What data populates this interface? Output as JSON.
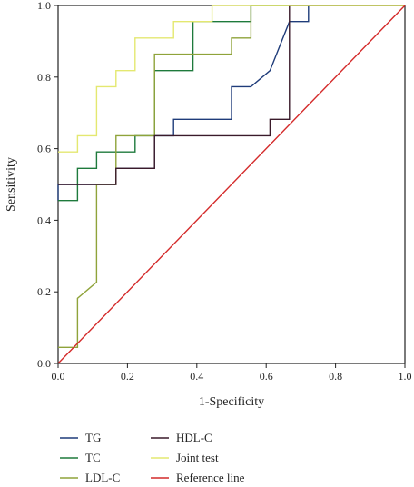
{
  "chart_data": {
    "type": "line",
    "title": "",
    "xlabel": "1-Specificity",
    "ylabel": "Sensitivity",
    "xlim": [
      0,
      1
    ],
    "ylim": [
      0,
      1
    ],
    "xticks": [
      "0.0",
      "0.2",
      "0.4",
      "0.6",
      "0.8",
      "1.0"
    ],
    "yticks": [
      "0.0",
      "0.2",
      "0.4",
      "0.6",
      "0.8",
      "1.0"
    ],
    "grid": false,
    "legend_position": "bottom",
    "series": [
      {
        "name": "TG",
        "color": "#1f3c7a",
        "points": [
          [
            0,
            0.455
          ],
          [
            0,
            0.5
          ],
          [
            0.111,
            0.5
          ],
          [
            0.167,
            0.5
          ],
          [
            0.167,
            0.545
          ],
          [
            0.278,
            0.545
          ],
          [
            0.278,
            0.636
          ],
          [
            0.333,
            0.636
          ],
          [
            0.333,
            0.682
          ],
          [
            0.5,
            0.682
          ],
          [
            0.5,
            0.773
          ],
          [
            0.556,
            0.773
          ],
          [
            0.556,
            0.773
          ],
          [
            0.611,
            0.818
          ],
          [
            0.667,
            0.955
          ],
          [
            0.722,
            0.955
          ],
          [
            0.722,
            1
          ],
          [
            1,
            1
          ]
        ]
      },
      {
        "name": "TC",
        "color": "#1e7a3c",
        "points": [
          [
            0,
            0.455
          ],
          [
            0.056,
            0.455
          ],
          [
            0.056,
            0.545
          ],
          [
            0.111,
            0.545
          ],
          [
            0.111,
            0.591
          ],
          [
            0.222,
            0.591
          ],
          [
            0.222,
            0.636
          ],
          [
            0.278,
            0.636
          ],
          [
            0.278,
            0.818
          ],
          [
            0.389,
            0.818
          ],
          [
            0.389,
            0.955
          ],
          [
            0.556,
            0.955
          ],
          [
            0.556,
            1
          ],
          [
            1,
            1
          ]
        ]
      },
      {
        "name": "LDL-C",
        "color": "#8fa33a",
        "points": [
          [
            0,
            0.045
          ],
          [
            0.056,
            0.045
          ],
          [
            0.056,
            0.182
          ],
          [
            0.111,
            0.227
          ],
          [
            0.111,
            0.5
          ],
          [
            0.167,
            0.5
          ],
          [
            0.167,
            0.636
          ],
          [
            0.278,
            0.636
          ],
          [
            0.278,
            0.864
          ],
          [
            0.5,
            0.864
          ],
          [
            0.5,
            0.909
          ],
          [
            0.556,
            0.909
          ],
          [
            0.556,
            1
          ],
          [
            1,
            1
          ]
        ]
      },
      {
        "name": "HDL-C",
        "color": "#3a1a2a",
        "points": [
          [
            0,
            0.5
          ],
          [
            0.111,
            0.5
          ],
          [
            0.111,
            0.5
          ],
          [
            0.167,
            0.5
          ],
          [
            0.167,
            0.545
          ],
          [
            0.278,
            0.545
          ],
          [
            0.278,
            0.636
          ],
          [
            0.611,
            0.636
          ],
          [
            0.611,
            0.682
          ],
          [
            0.667,
            0.682
          ],
          [
            0.667,
            1
          ],
          [
            1,
            1
          ]
        ]
      },
      {
        "name": "Joint test",
        "color": "#e4e870",
        "points": [
          [
            0,
            0.591
          ],
          [
            0.056,
            0.591
          ],
          [
            0.056,
            0.636
          ],
          [
            0.111,
            0.636
          ],
          [
            0.111,
            0.773
          ],
          [
            0.167,
            0.773
          ],
          [
            0.167,
            0.818
          ],
          [
            0.222,
            0.818
          ],
          [
            0.222,
            0.909
          ],
          [
            0.333,
            0.909
          ],
          [
            0.333,
            0.955
          ],
          [
            0.444,
            0.955
          ],
          [
            0.444,
            1
          ],
          [
            1,
            1
          ]
        ]
      },
      {
        "name": "Reference line",
        "color": "#d42a2a",
        "points": [
          [
            0,
            0
          ],
          [
            1,
            1
          ]
        ]
      }
    ]
  }
}
